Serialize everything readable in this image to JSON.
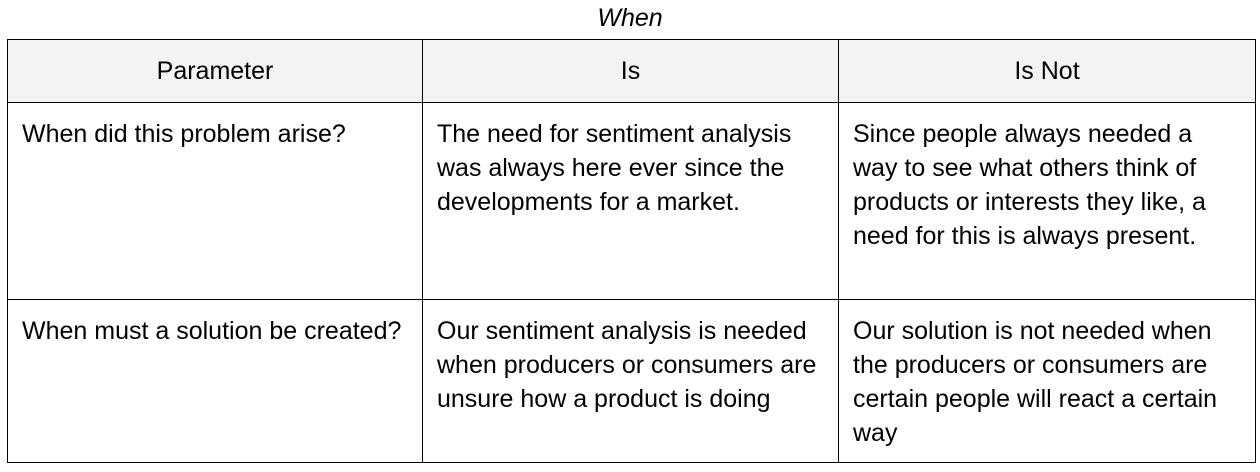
{
  "caption": "When",
  "table": {
    "headers": [
      "Parameter",
      "Is",
      "Is Not"
    ],
    "rows": [
      {
        "parameter": "When did this problem arise?",
        "is": "The need for sentiment analysis was always here ever since the developments for a market.",
        "is_not": "Since people always needed a way to see what others think of products or interests they like, a need for this is always present."
      },
      {
        "parameter": "When must a solution be created?",
        "is": "Our sentiment analysis is needed when producers or consumers are unsure how a product is doing",
        "is_not": "Our solution is not needed when the producers or consumers are certain people will react a certain way"
      }
    ]
  },
  "colors": {
    "header_background": "#f3f3f3",
    "border": "#000000",
    "text": "#000000"
  }
}
